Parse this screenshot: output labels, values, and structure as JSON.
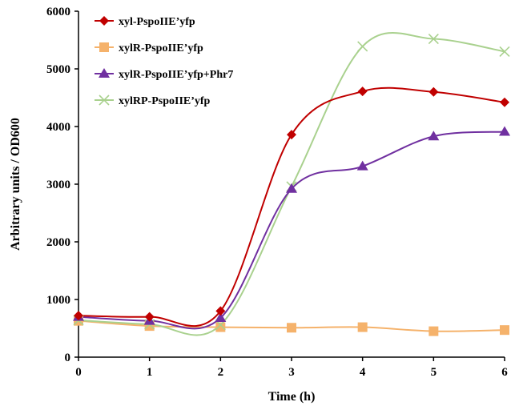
{
  "chart_data": {
    "type": "line",
    "xlabel": "Time (h)",
    "ylabel": "Arbitrary units / OD600",
    "xlim": [
      0,
      6
    ],
    "ylim": [
      0,
      6000
    ],
    "x_ticks": [
      "0",
      "1",
      "2",
      "3",
      "4",
      "5",
      "6"
    ],
    "y_ticks": [
      "0",
      "1000",
      "2000",
      "3000",
      "4000",
      "5000",
      "6000"
    ],
    "grid": false,
    "legend_position": "top-left",
    "x": [
      0,
      1,
      2,
      3,
      4,
      5,
      6
    ],
    "series": [
      {
        "name": "xyl-PspoIIE’yfp",
        "marker": "diamond",
        "color": "#c00000",
        "values": [
          720,
          700,
          800,
          3860,
          4610,
          4600,
          4420
        ]
      },
      {
        "name": "xylR-PspoIIE’yfp",
        "marker": "square",
        "color": "#f5b26b",
        "values": [
          630,
          540,
          520,
          510,
          520,
          450,
          470
        ]
      },
      {
        "name": "xylR-PspoIIE’yfp+Phr7",
        "marker": "triangle",
        "color": "#7030a0",
        "values": [
          700,
          630,
          680,
          2920,
          3310,
          3830,
          3910
        ]
      },
      {
        "name": "xylRP-PspoIIE’yfp",
        "marker": "cross",
        "color": "#a9d18e",
        "values": [
          640,
          570,
          560,
          2960,
          5390,
          5520,
          5300
        ]
      }
    ]
  }
}
